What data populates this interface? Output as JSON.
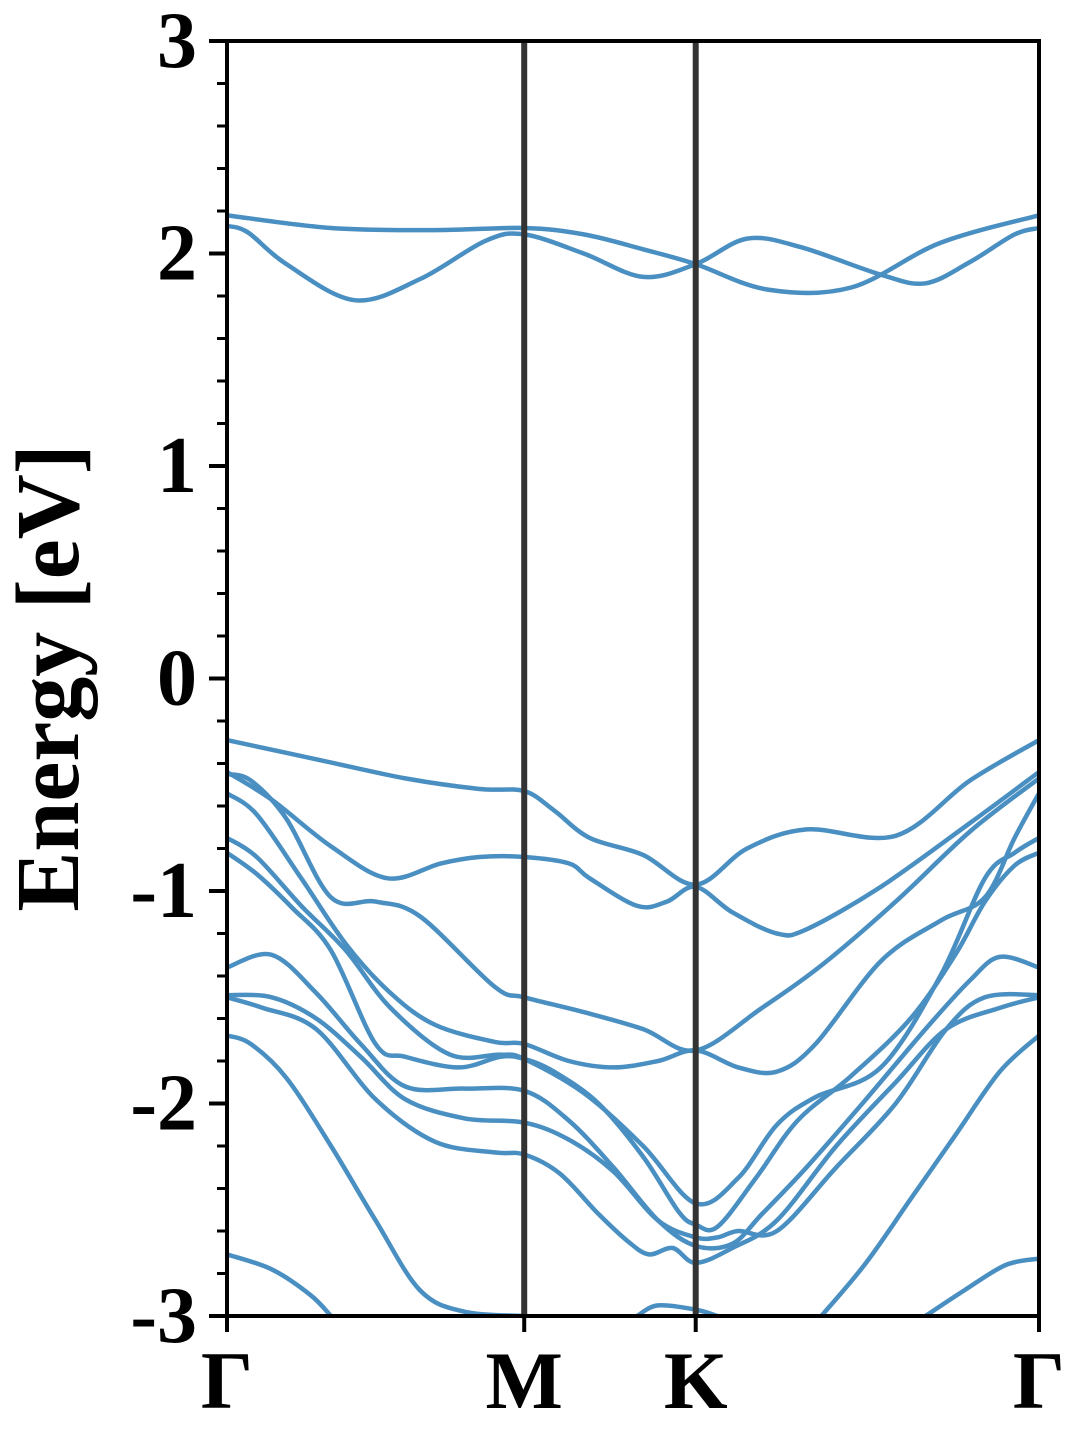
{
  "chart_data": {
    "type": "line",
    "title": "",
    "xlabel": "",
    "ylabel": "Energy [eV]",
    "ylim": [
      -3,
      3
    ],
    "yticks": [
      "3",
      "2",
      "1",
      "0",
      "-1",
      "-2",
      "-3"
    ],
    "ytick_values": [
      3,
      2,
      1,
      0,
      -1,
      -2,
      -3
    ],
    "xlim": [
      0,
      2.732
    ],
    "kpoints": [
      {
        "label": "Γ",
        "x": 0.0
      },
      {
        "label": "M",
        "x": 1.0
      },
      {
        "label": "K",
        "x": 1.577
      },
      {
        "label": "Γ",
        "x": 2.732
      }
    ],
    "grid": false,
    "colors": {
      "bands": "#4a8fc2",
      "kpath_lines": "#333333",
      "axes": "#000000"
    },
    "bands": [
      [
        [
          0,
          2.18
        ],
        [
          0.35,
          2.12
        ],
        [
          0.7,
          2.11
        ],
        [
          1.0,
          2.12
        ],
        [
          1.2,
          2.09
        ],
        [
          1.4,
          2.02
        ],
        [
          1.577,
          1.95
        ],
        [
          1.82,
          1.83
        ],
        [
          2.1,
          1.84
        ],
        [
          2.4,
          2.05
        ],
        [
          2.732,
          2.18
        ]
      ],
      [
        [
          0,
          2.13
        ],
        [
          0.07,
          2.1
        ],
        [
          0.2,
          1.95
        ],
        [
          0.43,
          1.78
        ],
        [
          0.65,
          1.88
        ],
        [
          0.87,
          2.06
        ],
        [
          1.0,
          2.09
        ],
        [
          1.2,
          2.0
        ],
        [
          1.4,
          1.89
        ],
        [
          1.577,
          1.95
        ],
        [
          1.75,
          2.07
        ],
        [
          1.93,
          2.03
        ],
        [
          2.2,
          1.9
        ],
        [
          2.35,
          1.86
        ],
        [
          2.5,
          1.96
        ],
        [
          2.65,
          2.09
        ],
        [
          2.732,
          2.12
        ]
      ],
      [
        [
          0,
          -0.29
        ],
        [
          0.3,
          -0.38
        ],
        [
          0.6,
          -0.47
        ],
        [
          0.85,
          -0.52
        ],
        [
          1.0,
          -0.53
        ],
        [
          1.1,
          -0.62
        ],
        [
          1.22,
          -0.75
        ],
        [
          1.4,
          -0.83
        ],
        [
          1.577,
          -0.97
        ],
        [
          1.75,
          -0.8
        ],
        [
          1.95,
          -0.71
        ],
        [
          2.25,
          -0.74
        ],
        [
          2.5,
          -0.48
        ],
        [
          2.732,
          -0.29
        ]
      ],
      [
        [
          0,
          -0.44
        ],
        [
          0.15,
          -0.57
        ],
        [
          0.35,
          -0.79
        ],
        [
          0.54,
          -0.94
        ],
        [
          0.72,
          -0.87
        ],
        [
          0.85,
          -0.84
        ],
        [
          1.0,
          -0.84
        ],
        [
          1.15,
          -0.87
        ],
        [
          1.22,
          -0.94
        ],
        [
          1.38,
          -1.07
        ],
        [
          1.48,
          -1.05
        ],
        [
          1.577,
          -0.98
        ],
        [
          1.7,
          -1.1
        ],
        [
          1.85,
          -1.2
        ],
        [
          1.95,
          -1.18
        ],
        [
          2.2,
          -0.98
        ],
        [
          2.5,
          -0.68
        ],
        [
          2.732,
          -0.44
        ]
      ],
      [
        [
          0,
          -0.45
        ],
        [
          0.08,
          -0.48
        ],
        [
          0.2,
          -0.66
        ],
        [
          0.35,
          -1.03
        ],
        [
          0.5,
          -1.05
        ],
        [
          0.65,
          -1.12
        ],
        [
          0.9,
          -1.45
        ],
        [
          1.0,
          -1.5
        ],
        [
          1.2,
          -1.57
        ],
        [
          1.4,
          -1.65
        ],
        [
          1.577,
          -1.75
        ],
        [
          1.8,
          -1.55
        ],
        [
          2.0,
          -1.35
        ],
        [
          2.25,
          -1.05
        ],
        [
          2.5,
          -0.72
        ],
        [
          2.732,
          -0.47
        ]
      ],
      [
        [
          0,
          -0.54
        ],
        [
          0.1,
          -0.64
        ],
        [
          0.25,
          -0.94
        ],
        [
          0.4,
          -1.25
        ],
        [
          0.55,
          -1.48
        ],
        [
          0.7,
          -1.63
        ],
        [
          0.9,
          -1.71
        ],
        [
          1.0,
          -1.72
        ],
        [
          1.15,
          -1.8
        ],
        [
          1.3,
          -1.83
        ],
        [
          1.45,
          -1.8
        ],
        [
          1.577,
          -1.75
        ],
        [
          1.72,
          -1.83
        ],
        [
          1.85,
          -1.85
        ],
        [
          1.98,
          -1.72
        ],
        [
          2.2,
          -1.33
        ],
        [
          2.4,
          -1.14
        ],
        [
          2.55,
          -1.03
        ],
        [
          2.65,
          -0.75
        ],
        [
          2.732,
          -0.54
        ]
      ],
      [
        [
          0,
          -0.75
        ],
        [
          0.1,
          -0.84
        ],
        [
          0.25,
          -1.07
        ],
        [
          0.4,
          -1.28
        ],
        [
          0.55,
          -1.55
        ],
        [
          0.75,
          -1.77
        ],
        [
          0.92,
          -1.77
        ],
        [
          1.0,
          -1.79
        ],
        [
          1.2,
          -1.95
        ],
        [
          1.4,
          -2.2
        ],
        [
          1.577,
          -2.47
        ],
        [
          1.72,
          -2.35
        ],
        [
          1.85,
          -2.1
        ],
        [
          1.98,
          -1.97
        ],
        [
          2.2,
          -1.83
        ],
        [
          2.4,
          -1.4
        ],
        [
          2.55,
          -0.94
        ],
        [
          2.65,
          -0.82
        ],
        [
          2.732,
          -0.75
        ]
      ],
      [
        [
          0,
          -0.82
        ],
        [
          0.1,
          -0.92
        ],
        [
          0.22,
          -1.08
        ],
        [
          0.35,
          -1.28
        ],
        [
          0.5,
          -1.72
        ],
        [
          0.6,
          -1.78
        ],
        [
          0.78,
          -1.83
        ],
        [
          0.92,
          -1.78
        ],
        [
          1.0,
          -1.79
        ],
        [
          1.1,
          -1.85
        ],
        [
          1.25,
          -2.0
        ],
        [
          1.4,
          -2.25
        ],
        [
          1.52,
          -2.51
        ],
        [
          1.577,
          -2.57
        ],
        [
          1.65,
          -2.58
        ],
        [
          1.78,
          -2.35
        ],
        [
          1.92,
          -2.08
        ],
        [
          2.1,
          -1.87
        ],
        [
          2.3,
          -1.6
        ],
        [
          2.45,
          -1.3
        ],
        [
          2.55,
          -1.05
        ],
        [
          2.65,
          -0.88
        ],
        [
          2.732,
          -0.82
        ]
      ],
      [
        [
          0,
          -1.36
        ],
        [
          0.15,
          -1.3
        ],
        [
          0.3,
          -1.48
        ],
        [
          0.45,
          -1.72
        ],
        [
          0.6,
          -1.92
        ],
        [
          0.8,
          -1.93
        ],
        [
          1.0,
          -1.94
        ],
        [
          1.15,
          -2.08
        ],
        [
          1.3,
          -2.3
        ],
        [
          1.45,
          -2.55
        ],
        [
          1.577,
          -2.67
        ],
        [
          1.7,
          -2.66
        ],
        [
          1.8,
          -2.52
        ],
        [
          1.95,
          -2.3
        ],
        [
          2.15,
          -1.98
        ],
        [
          2.35,
          -1.65
        ],
        [
          2.5,
          -1.42
        ],
        [
          2.6,
          -1.31
        ],
        [
          2.732,
          -1.36
        ]
      ],
      [
        [
          0,
          -1.49
        ],
        [
          0.15,
          -1.5
        ],
        [
          0.3,
          -1.6
        ],
        [
          0.45,
          -1.78
        ],
        [
          0.6,
          -1.98
        ],
        [
          0.8,
          -2.07
        ],
        [
          1.0,
          -2.09
        ],
        [
          1.15,
          -2.17
        ],
        [
          1.3,
          -2.32
        ],
        [
          1.45,
          -2.55
        ],
        [
          1.577,
          -2.63
        ],
        [
          1.65,
          -2.63
        ],
        [
          1.72,
          -2.6
        ],
        [
          1.85,
          -2.6
        ],
        [
          2.05,
          -2.3
        ],
        [
          2.25,
          -2.0
        ],
        [
          2.42,
          -1.65
        ],
        [
          2.55,
          -1.5
        ],
        [
          2.732,
          -1.49
        ]
      ],
      [
        [
          0,
          -1.5
        ],
        [
          0.12,
          -1.55
        ],
        [
          0.3,
          -1.65
        ],
        [
          0.5,
          -1.98
        ],
        [
          0.7,
          -2.18
        ],
        [
          0.9,
          -2.23
        ],
        [
          1.0,
          -2.24
        ],
        [
          1.12,
          -2.33
        ],
        [
          1.25,
          -2.52
        ],
        [
          1.35,
          -2.65
        ],
        [
          1.42,
          -2.71
        ],
        [
          1.5,
          -2.68
        ],
        [
          1.577,
          -2.75
        ],
        [
          1.7,
          -2.68
        ],
        [
          1.85,
          -2.55
        ],
        [
          2.05,
          -2.2
        ],
        [
          2.25,
          -1.9
        ],
        [
          2.42,
          -1.65
        ],
        [
          2.6,
          -1.55
        ],
        [
          2.732,
          -1.5
        ]
      ],
      [
        [
          0,
          -1.68
        ],
        [
          0.08,
          -1.72
        ],
        [
          0.2,
          -1.88
        ],
        [
          0.35,
          -2.2
        ],
        [
          0.5,
          -2.55
        ],
        [
          0.65,
          -2.88
        ],
        [
          0.8,
          -2.98
        ],
        [
          1.0,
          -3.0
        ]
      ],
      [
        [
          1.38,
          -3.0
        ],
        [
          1.45,
          -2.95
        ],
        [
          1.577,
          -2.97
        ],
        [
          1.65,
          -3.0
        ]
      ],
      [
        [
          2.0,
          -3.0
        ],
        [
          2.15,
          -2.75
        ],
        [
          2.3,
          -2.45
        ],
        [
          2.45,
          -2.15
        ],
        [
          2.6,
          -1.85
        ],
        [
          2.732,
          -1.68
        ]
      ],
      [
        [
          0.0,
          -2.71
        ],
        [
          0.15,
          -2.78
        ],
        [
          0.28,
          -2.9
        ],
        [
          0.35,
          -3.0
        ]
      ],
      [
        [
          2.35,
          -3.0
        ],
        [
          2.48,
          -2.88
        ],
        [
          2.62,
          -2.76
        ],
        [
          2.732,
          -2.73
        ]
      ]
    ]
  }
}
